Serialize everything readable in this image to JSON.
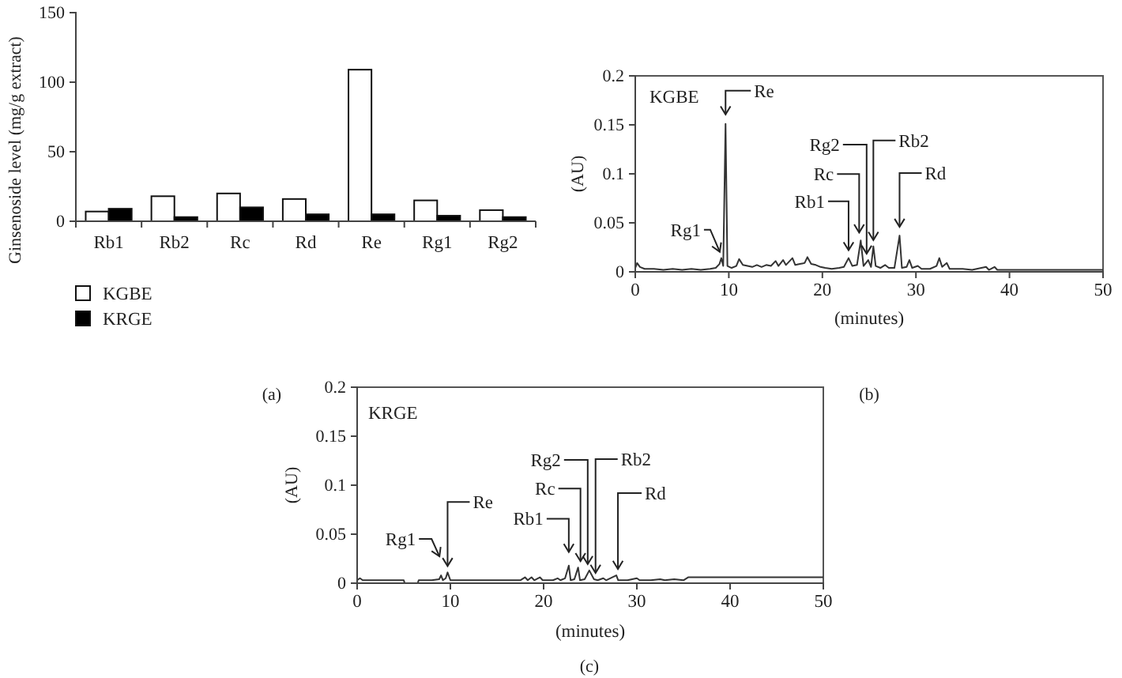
{
  "chart_data": [
    {
      "type": "bar",
      "ylabel": "Ginsenoside level (mg/g extract)",
      "categories": [
        "Rb1",
        "Rb2",
        "Rc",
        "Rd",
        "Re",
        "Rg1",
        "Rg2"
      ],
      "series": [
        {
          "name": "KGBE",
          "color": "#ffffff",
          "values": [
            7,
            18,
            20,
            16,
            109,
            15,
            8
          ]
        },
        {
          "name": "KRGE",
          "color": "#000000",
          "values": [
            9,
            3,
            10,
            5,
            5,
            4,
            3
          ]
        }
      ],
      "ylim": [
        0,
        150
      ],
      "yticks": [
        0,
        50,
        100,
        150
      ],
      "legend": "bottom left",
      "annotations": [
        "(a)"
      ]
    },
    {
      "type": "line",
      "title": "KGBE",
      "xlabel": "(minutes)",
      "ylabel": "(AU)",
      "series": [
        {
          "color": "#333333",
          "x": [
            0,
            0.2,
            0.5,
            1,
            2,
            3,
            4,
            5,
            6,
            7,
            8,
            8.6,
            9.0,
            9.2,
            9.4,
            9.65,
            9.85,
            10.3,
            10.8,
            11.1,
            11.5,
            12,
            12.5,
            13,
            13.5,
            14,
            14.5,
            15,
            15.3,
            15.8,
            16.1,
            16.8,
            17.1,
            17.6,
            18.1,
            18.4,
            18.8,
            19.3,
            19.8,
            20.3,
            21,
            21.8,
            22.3,
            22.8,
            23.2,
            23.7,
            24.1,
            24.4,
            24.9,
            25.2,
            25.45,
            25.7,
            26.2,
            26.7,
            27.1,
            27.7,
            28.25,
            28.5,
            29.0,
            29.3,
            29.6,
            30.2,
            30.6,
            31.5,
            32.2,
            32.5,
            32.8,
            33.3,
            33.6,
            35,
            36,
            37.5,
            37.8,
            38.4,
            38.7,
            40,
            45,
            50
          ],
          "values": [
            0.004,
            0.009,
            0.005,
            0.003,
            0.003,
            0.002,
            0.003,
            0.002,
            0.003,
            0.002,
            0.003,
            0.004,
            0.008,
            0.014,
            0.006,
            0.151,
            0.006,
            0.004,
            0.006,
            0.013,
            0.007,
            0.006,
            0.005,
            0.007,
            0.005,
            0.007,
            0.006,
            0.011,
            0.006,
            0.012,
            0.007,
            0.014,
            0.007,
            0.008,
            0.009,
            0.015,
            0.008,
            0.007,
            0.005,
            0.004,
            0.003,
            0.004,
            0.005,
            0.014,
            0.006,
            0.007,
            0.032,
            0.006,
            0.012,
            0.005,
            0.026,
            0.006,
            0.004,
            0.007,
            0.004,
            0.004,
            0.037,
            0.004,
            0.005,
            0.012,
            0.004,
            0.006,
            0.003,
            0.003,
            0.006,
            0.014,
            0.005,
            0.009,
            0.003,
            0.003,
            0.002,
            0.005,
            0.002,
            0.005,
            0.002,
            0.002,
            0.002,
            0.002
          ]
        }
      ],
      "xlim": [
        0,
        50
      ],
      "xticks": [
        0,
        10,
        20,
        30,
        40,
        50
      ],
      "ylim": [
        0,
        0.2
      ],
      "yticks": [
        0,
        0.05,
        0.1,
        0.15,
        0.2
      ],
      "annotations": [
        {
          "text": "Rg1",
          "x": 9.2,
          "y": 0.014
        },
        {
          "text": "Re",
          "x": 9.65,
          "y": 0.151
        },
        {
          "text": "Rb1",
          "x": 22.8,
          "y": 0.014
        },
        {
          "text": "Rc",
          "x": 24.1,
          "y": 0.032
        },
        {
          "text": "Rg2",
          "x": 24.9,
          "y": 0.012
        },
        {
          "text": "Rb2",
          "x": 25.45,
          "y": 0.026
        },
        {
          "text": "Rd",
          "x": 28.25,
          "y": 0.037
        },
        "(b)"
      ]
    },
    {
      "type": "line",
      "title": "KRGE",
      "xlabel": "(minutes)",
      "ylabel": "(AU)",
      "series": [
        {
          "color": "#333333",
          "x": [
            0,
            0.3,
            0.6,
            2,
            4,
            5.0,
            5.1,
            6.5,
            6.6,
            8,
            8.8,
            9.0,
            9.2,
            9.5,
            9.7,
            10.0,
            11,
            13,
            15,
            17.5,
            18,
            18.3,
            18.7,
            19,
            19.6,
            19.9,
            21,
            21.5,
            21.8,
            22.3,
            22.7,
            22.9,
            23.3,
            23.7,
            23.9,
            24.4,
            24.9,
            25.4,
            25.8,
            26.4,
            26.7,
            27.8,
            28.0,
            29,
            30,
            30.3,
            31.5,
            32.5,
            33,
            34,
            35,
            35.5,
            40,
            45,
            50
          ],
          "values": [
            0.003,
            0.005,
            0.003,
            0.003,
            0.003,
            0.003,
            0,
            0,
            0.003,
            0.003,
            0.004,
            0.008,
            0.003,
            0.005,
            0.011,
            0.003,
            0.003,
            0.003,
            0.003,
            0.003,
            0.006,
            0.003,
            0.006,
            0.003,
            0.006,
            0.003,
            0.003,
            0.005,
            0.003,
            0.005,
            0.018,
            0.003,
            0.004,
            0.016,
            0.003,
            0.004,
            0.013,
            0.004,
            0.003,
            0.005,
            0.003,
            0.008,
            0.003,
            0.003,
            0.005,
            0.003,
            0.003,
            0.004,
            0.003,
            0.004,
            0.003,
            0.006,
            0.006,
            0.006,
            0.006
          ]
        }
      ],
      "xlim": [
        0,
        50
      ],
      "xticks": [
        0,
        10,
        20,
        30,
        40,
        50
      ],
      "ylim": [
        0,
        0.2
      ],
      "yticks": [
        0,
        0.05,
        0.1,
        0.15,
        0.2
      ],
      "annotations": [
        {
          "text": "Rg1",
          "x": 9.0,
          "y": 0.008
        },
        {
          "text": "Re",
          "x": 9.7,
          "y": 0.011
        },
        {
          "text": "Rb1",
          "x": 22.7,
          "y": 0.018
        },
        {
          "text": "Rc",
          "x": 23.7,
          "y": 0.016
        },
        {
          "text": "Rg2",
          "x": 24.9,
          "y": 0.013
        },
        {
          "text": "Rb2",
          "x": 25.4,
          "y": 0.004
        },
        {
          "text": "Rd",
          "x": 27.8,
          "y": 0.008
        },
        "(c)"
      ]
    }
  ]
}
